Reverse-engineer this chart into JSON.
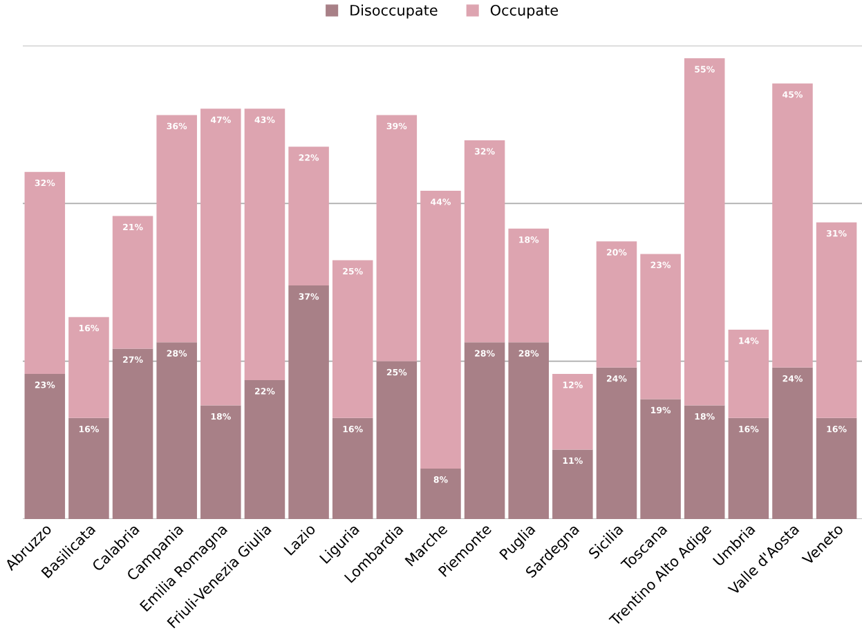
{
  "chart_data": {
    "type": "bar",
    "stacked": true,
    "categories": [
      "Abruzzo",
      "Basilicata",
      "Calabria",
      "Campania",
      "Emilia Romagna",
      "Friuli-Venezia Giulia",
      "Lazio",
      "Liguria",
      "Lombardia",
      "Marche",
      "Piemonte",
      "Puglia",
      "Sardegna",
      "Sicilia",
      "Toscana",
      "Trentino Alto Adige",
      "Umbria",
      "Valle d'Aosta",
      "Veneto"
    ],
    "series": [
      {
        "name": "Disoccupate",
        "color": "#a88087",
        "values": [
          23,
          16,
          27,
          28,
          18,
          22,
          37,
          16,
          25,
          8,
          28,
          28,
          11,
          24,
          19,
          18,
          16,
          24,
          16
        ],
        "value_labels": [
          "23%",
          "16%",
          "27%",
          "28%",
          "18%",
          "22%",
          "37%",
          "16%",
          "25%",
          "8%",
          "28%",
          "28%",
          "11%",
          "24%",
          "19%",
          "18%",
          "16%",
          "24%",
          "16%"
        ]
      },
      {
        "name": "Occupate",
        "color": "#dda4b0",
        "values": [
          32,
          16,
          21,
          36,
          47,
          43,
          22,
          25,
          39,
          44,
          32,
          18,
          12,
          20,
          23,
          55,
          14,
          45,
          31
        ],
        "value_labels": [
          "32%",
          "16%",
          "21%",
          "36%",
          "47%",
          "43%",
          "22%",
          "25%",
          "39%",
          "44%",
          "32%",
          "18%",
          "12%",
          "20%",
          "23%",
          "55%",
          "14%",
          "45%",
          "31%"
        ]
      }
    ],
    "ylim": [
      0,
      75
    ],
    "yticks": [
      {
        "value": 0,
        "label": null
      },
      {
        "value": 25,
        "label": null
      },
      {
        "value": 50,
        "label": null
      },
      {
        "value": 75,
        "label": null
      }
    ],
    "tick_labels": "x",
    "grid": "y",
    "legend": "top"
  }
}
